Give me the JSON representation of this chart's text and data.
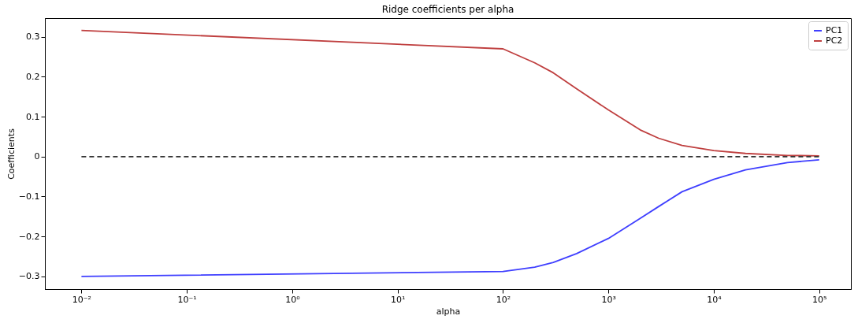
{
  "chart_data": {
    "type": "line",
    "title": "Ridge coefficients per alpha",
    "xlabel": "alpha",
    "ylabel": "Coefficients",
    "log": "x",
    "grid": false,
    "legend": "top right",
    "marker": "none",
    "xlim": [
      0.0045,
      200000
    ],
    "ylim": [
      -0.332,
      0.347
    ],
    "xticks": [
      {
        "value": 0.01,
        "label": "10⁻²"
      },
      {
        "value": 0.1,
        "label": "10⁻¹"
      },
      {
        "value": 1,
        "label": "10⁰"
      },
      {
        "value": 10,
        "label": "10¹"
      },
      {
        "value": 100,
        "label": "10²"
      },
      {
        "value": 1000,
        "label": "10³"
      },
      {
        "value": 10000,
        "label": "10⁴"
      },
      {
        "value": 100000,
        "label": "10⁵"
      }
    ],
    "yticks": [
      {
        "value": -0.3,
        "label": "−0.3"
      },
      {
        "value": -0.2,
        "label": "−0.2"
      },
      {
        "value": -0.1,
        "label": "−0.1"
      },
      0.0,
      0.1,
      0.2,
      0.3
    ],
    "x": [
      0.01,
      100,
      200,
      300,
      500,
      1000,
      2000,
      3000,
      5000,
      10000,
      20000,
      50000,
      100000
    ],
    "series": [
      {
        "name": "PC1",
        "color": "#3f3fff",
        "line_style": "solid",
        "values": [
          -0.3,
          -0.288,
          -0.277,
          -0.265,
          -0.243,
          -0.205,
          -0.155,
          -0.125,
          -0.088,
          -0.057,
          -0.033,
          -0.015,
          -0.008
        ]
      },
      {
        "name": "PC2",
        "color": "#bf3f3f",
        "line_style": "solid",
        "values": [
          0.316,
          0.27,
          0.235,
          0.21,
          0.17,
          0.117,
          0.067,
          0.046,
          0.028,
          0.015,
          0.008,
          0.003,
          0.002
        ]
      },
      {
        "color": "#333333",
        "line_style": "dashed",
        "x": [
          0.01,
          100000
        ],
        "values": [
          0,
          0
        ]
      }
    ]
  }
}
